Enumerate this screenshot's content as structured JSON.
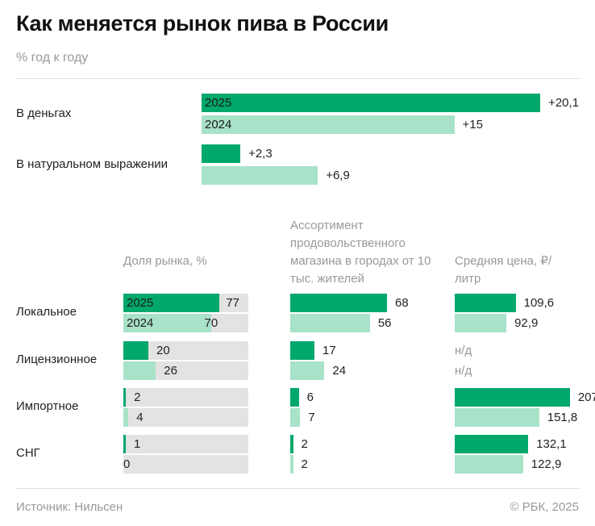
{
  "title": "Как меняется рынок пива в России",
  "subtitle": "% год к году",
  "colors": {
    "y2025": "#00a86b",
    "y2024": "#a8e2c8",
    "track": "#e3e3e3"
  },
  "chart_data": [
    {
      "type": "bar",
      "orientation": "horizontal",
      "categories": [
        "В деньгах",
        "В натуральном выражении"
      ],
      "series": [
        {
          "name": "2025",
          "values": [
            20.1,
            2.3
          ],
          "labels": [
            "+20,1",
            "+2,3"
          ]
        },
        {
          "name": "2024",
          "values": [
            15,
            6.9
          ],
          "labels": [
            "+15",
            "+6,9"
          ]
        }
      ]
    },
    {
      "type": "bar",
      "orientation": "horizontal",
      "title": "Доля рынка, %",
      "categories": [
        "Локальное",
        "Лицензионное",
        "Импортное",
        "СНГ"
      ],
      "series": [
        {
          "name": "2025",
          "values": [
            77,
            20,
            2,
            1
          ],
          "labels": [
            "77",
            "20",
            "2",
            "1"
          ]
        },
        {
          "name": "2024",
          "values": [
            70,
            26,
            4,
            0
          ],
          "labels": [
            "70",
            "26",
            "4",
            "0"
          ]
        }
      ],
      "xlim": [
        0,
        100
      ]
    },
    {
      "type": "bar",
      "orientation": "horizontal",
      "title": "Ассортимент продовольственного магазина в городах от 10 тыс. жителей",
      "categories": [
        "Локальное",
        "Лицензионное",
        "Импортное",
        "СНГ"
      ],
      "series": [
        {
          "name": "2025",
          "values": [
            68,
            17,
            6,
            2
          ],
          "labels": [
            "68",
            "17",
            "6",
            "2"
          ]
        },
        {
          "name": "2024",
          "values": [
            56,
            24,
            7,
            2
          ],
          "labels": [
            "56",
            "24",
            "7",
            "2"
          ]
        }
      ]
    },
    {
      "type": "bar",
      "orientation": "horizontal",
      "title": "Средняя цена, ₽/литр",
      "categories": [
        "Локальное",
        "Лицензионное",
        "Импортное",
        "СНГ"
      ],
      "series": [
        {
          "name": "2025",
          "values": [
            109.6,
            null,
            207,
            132.1
          ],
          "labels": [
            "109,6",
            "н/д",
            "207",
            "132,1"
          ]
        },
        {
          "name": "2024",
          "values": [
            92.9,
            null,
            151.8,
            122.9
          ],
          "labels": [
            "92,9",
            "н/д",
            "151,8",
            "122,9"
          ]
        }
      ]
    }
  ],
  "footer": {
    "source": "Источник: Нильсен",
    "copyright": "© РБК, 2025"
  }
}
